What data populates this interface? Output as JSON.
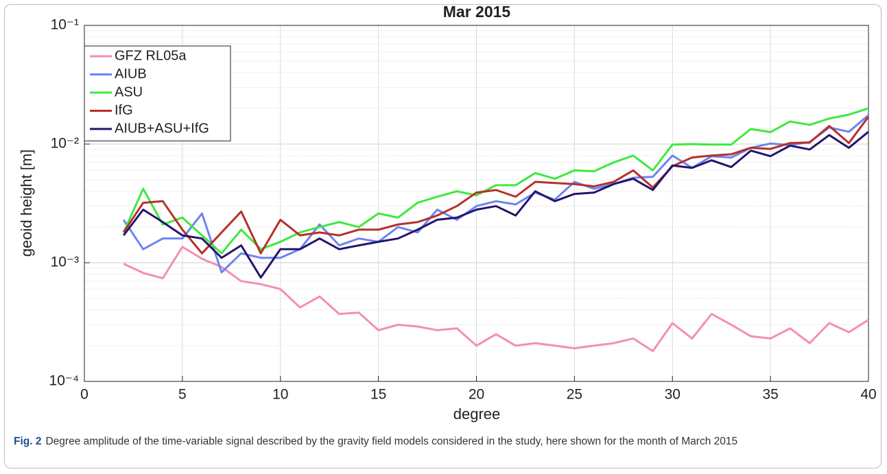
{
  "chart_data": {
    "type": "line",
    "title": "Mar 2015",
    "x_label": "degree",
    "y_label": "geoid height [m]",
    "x": [
      2,
      3,
      4,
      5,
      6,
      7,
      8,
      9,
      10,
      11,
      12,
      13,
      14,
      15,
      16,
      17,
      18,
      19,
      20,
      21,
      22,
      23,
      24,
      25,
      26,
      27,
      28,
      29,
      30,
      31,
      32,
      33,
      34,
      35,
      36,
      37,
      38,
      39,
      40
    ],
    "series": [
      {
        "name": "GFZ RL05a",
        "color": "#f48fb1",
        "values": [
          0.00098,
          0.00082,
          0.00074,
          0.00136,
          0.00108,
          0.00092,
          0.0007,
          0.00066,
          0.0006,
          0.00042,
          0.00052,
          0.00037,
          0.00038,
          0.00027,
          0.0003,
          0.00029,
          0.00027,
          0.00028,
          0.0002,
          0.00025,
          0.0002,
          0.00021,
          0.0002,
          0.00019,
          0.0002,
          0.00021,
          0.00023,
          0.00018,
          0.00031,
          0.00023,
          0.00037,
          0.0003,
          0.00024,
          0.00023,
          0.00028,
          0.00021,
          0.00031,
          0.00026,
          0.00033
        ]
      },
      {
        "name": "AIUB",
        "color": "#6b84f0",
        "values": [
          0.0023,
          0.0013,
          0.0016,
          0.0016,
          0.0026,
          0.00083,
          0.0012,
          0.0011,
          0.0011,
          0.0013,
          0.0021,
          0.0014,
          0.0016,
          0.0015,
          0.002,
          0.0018,
          0.0028,
          0.0023,
          0.003,
          0.0033,
          0.0031,
          0.0039,
          0.0034,
          0.0048,
          0.0042,
          0.0046,
          0.0052,
          0.0053,
          0.008,
          0.0063,
          0.0079,
          0.0077,
          0.0093,
          0.0101,
          0.0098,
          0.0104,
          0.0138,
          0.0127,
          0.0175
        ]
      },
      {
        "name": "ASU",
        "color": "#3ee83e",
        "values": [
          0.0018,
          0.0042,
          0.0021,
          0.0024,
          0.0017,
          0.0012,
          0.0019,
          0.0013,
          0.0015,
          0.0018,
          0.002,
          0.0022,
          0.002,
          0.0026,
          0.0024,
          0.0032,
          0.0036,
          0.004,
          0.0037,
          0.0045,
          0.0045,
          0.0057,
          0.0051,
          0.006,
          0.0059,
          0.007,
          0.008,
          0.006,
          0.0099,
          0.01,
          0.0099,
          0.0099,
          0.0134,
          0.0126,
          0.0155,
          0.0145,
          0.0164,
          0.0177,
          0.02
        ]
      },
      {
        "name": "IfG",
        "color": "#b5302a",
        "values": [
          0.0018,
          0.0032,
          0.0033,
          0.0019,
          0.0012,
          0.0018,
          0.0027,
          0.0012,
          0.0023,
          0.0017,
          0.0018,
          0.0017,
          0.0019,
          0.0019,
          0.0021,
          0.0022,
          0.0025,
          0.003,
          0.0039,
          0.0041,
          0.0036,
          0.0048,
          0.0047,
          0.0046,
          0.0044,
          0.0048,
          0.006,
          0.0043,
          0.0065,
          0.0077,
          0.008,
          0.0082,
          0.0093,
          0.0091,
          0.0102,
          0.0103,
          0.0142,
          0.0102,
          0.017
        ]
      },
      {
        "name": "AIUB+ASU+IfG",
        "color": "#24146e",
        "values": [
          0.0017,
          0.0028,
          0.0022,
          0.0017,
          0.0016,
          0.0011,
          0.0014,
          0.00075,
          0.0013,
          0.0013,
          0.0016,
          0.0013,
          0.0014,
          0.0015,
          0.0016,
          0.0019,
          0.0023,
          0.0024,
          0.0028,
          0.003,
          0.0025,
          0.004,
          0.0033,
          0.0038,
          0.0039,
          0.0046,
          0.0051,
          0.0041,
          0.0066,
          0.0063,
          0.0073,
          0.0064,
          0.0088,
          0.0079,
          0.0097,
          0.009,
          0.0119,
          0.0093,
          0.0127
        ]
      }
    ],
    "xlim": [
      0,
      40
    ],
    "xticks": [
      0,
      5,
      10,
      15,
      20,
      25,
      30,
      35,
      40
    ],
    "ylim": [
      0.0001,
      0.1
    ],
    "ylog": true,
    "yticks": [
      {
        "value": 0.0001,
        "label": "10⁻⁴"
      },
      {
        "value": 0.001,
        "label": "10⁻³"
      },
      {
        "value": 0.01,
        "label": "10⁻²"
      },
      {
        "value": 0.1,
        "label": "10⁻¹"
      }
    ],
    "grid": true,
    "legend": "upper left"
  },
  "caption": {
    "label": "Fig. 2",
    "text": "Degree amplitude of the time-variable signal described by the gravity field models considered in the study, here shown for the month of March 2015"
  }
}
